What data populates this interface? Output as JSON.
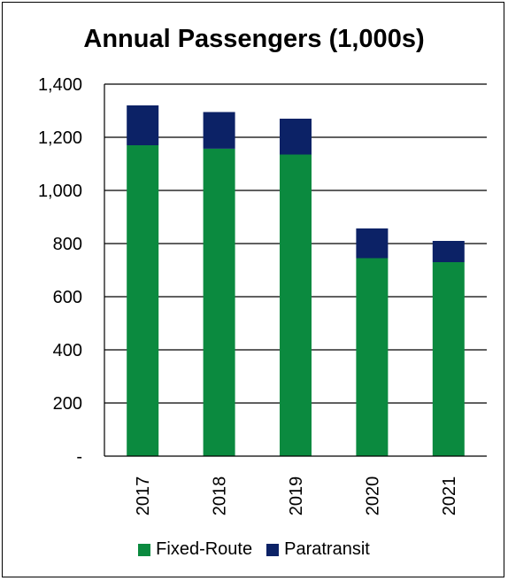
{
  "chart_data": {
    "type": "bar",
    "stacked": true,
    "title": "Annual Passengers (1,000s)",
    "categories": [
      "2017",
      "2018",
      "2019",
      "2020",
      "2021"
    ],
    "series": [
      {
        "name": "Fixed-Route",
        "color": "#0b8a3f",
        "values": [
          1170,
          1157,
          1135,
          745,
          730
        ]
      },
      {
        "name": "Paratransit",
        "color": "#0c2266",
        "values": [
          150,
          138,
          135,
          112,
          80
        ]
      }
    ],
    "ylim": [
      0,
      1400
    ],
    "yticks": [
      "-",
      "200",
      "400",
      "600",
      "800",
      "1,000",
      "1,200",
      "1,400"
    ],
    "grid": true,
    "legend": "bottom"
  }
}
